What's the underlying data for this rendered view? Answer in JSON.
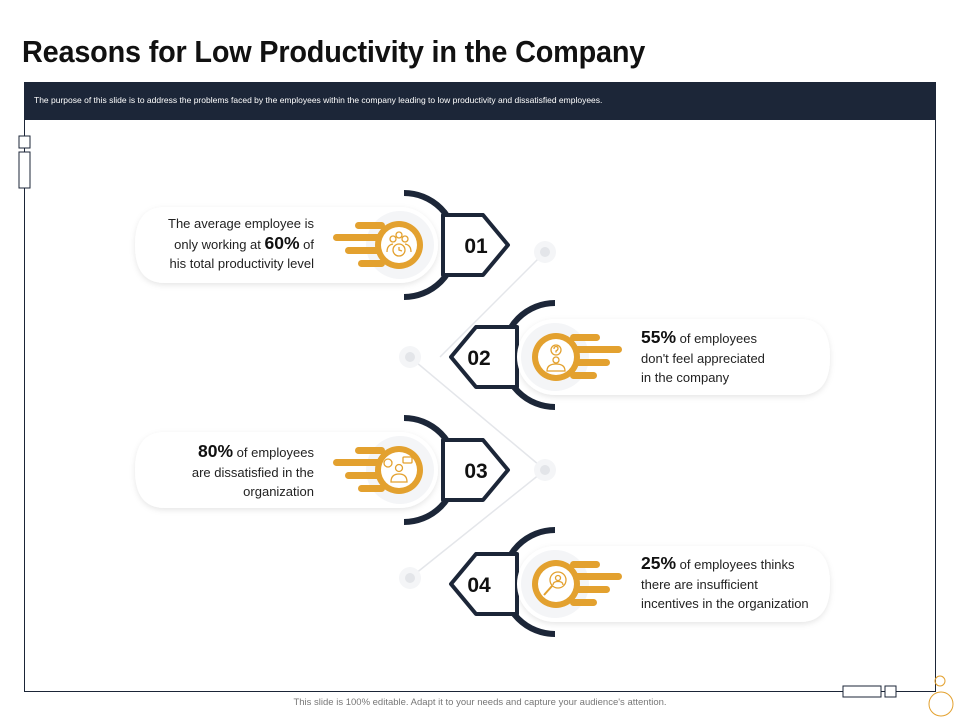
{
  "title": "Reasons for Low Productivity in the Company",
  "banner": "The purpose of this slide is to address the problems faced by the employees within the company leading to low productivity and dissatisfied employees.",
  "items": [
    {
      "number": "01",
      "side": "left",
      "icon": "employee-clock-icon",
      "lines": [
        {
          "pre": "The average employee is",
          "bold": "",
          "post": ""
        },
        {
          "pre": "only working at ",
          "bold": "60%",
          "post": " of"
        },
        {
          "pre": "his total productivity level",
          "bold": "",
          "post": ""
        }
      ]
    },
    {
      "number": "02",
      "side": "right",
      "icon": "question-person-icon",
      "lines": [
        {
          "pre": "",
          "bold": "55%",
          "post": " of employees"
        },
        {
          "pre": "don't feel appreciated",
          "bold": "",
          "post": ""
        },
        {
          "pre": "in the company",
          "bold": "",
          "post": ""
        }
      ]
    },
    {
      "number": "03",
      "side": "left",
      "icon": "speech-person-icon",
      "lines": [
        {
          "pre": "",
          "bold": "80%",
          "post": " of employees"
        },
        {
          "pre": "are dissatisfied in the",
          "bold": "",
          "post": ""
        },
        {
          "pre": "organization",
          "bold": "",
          "post": ""
        }
      ]
    },
    {
      "number": "04",
      "side": "right",
      "icon": "magnifier-person-icon",
      "lines": [
        {
          "pre": "",
          "bold": "25%",
          "post": " of employees thinks"
        },
        {
          "pre": "there are insufficient",
          "bold": "",
          "post": ""
        },
        {
          "pre": "incentives in the organization",
          "bold": "",
          "post": ""
        }
      ]
    }
  ],
  "footer": "This slide is 100% editable. Adapt it to your needs and capture your audience's attention.",
  "colors": {
    "navy": "#1c2638",
    "gold": "#e3a12f",
    "text": "#222222"
  }
}
